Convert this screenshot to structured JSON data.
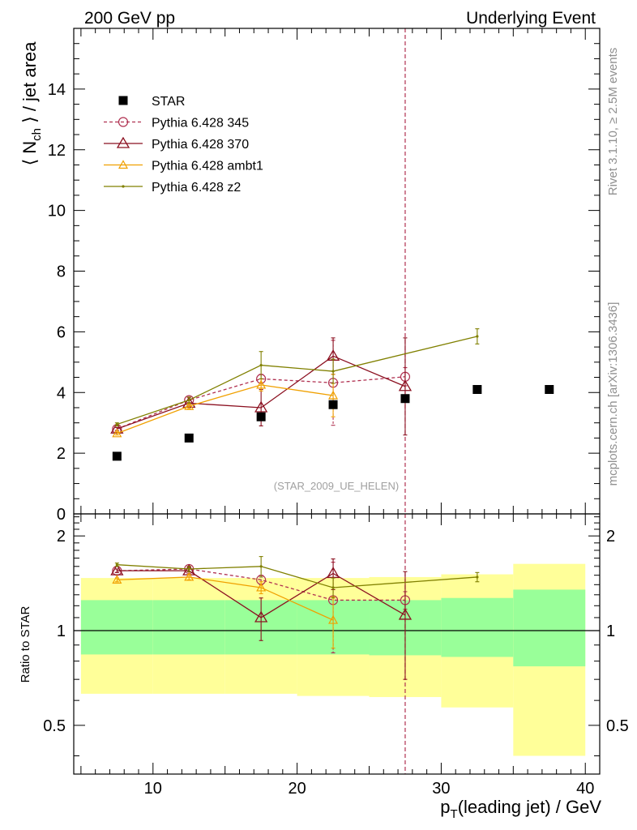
{
  "header": {
    "left": "200 GeV pp",
    "right": "Underlying Event"
  },
  "side_labels": {
    "rivet": "Rivet 3.1.10, ≥ 2.5M events",
    "mcplots": "mcplots.cern.ch [arXiv:1306.3436]"
  },
  "analysis_label": "(STAR_2009_UE_HELEN)",
  "colors": {
    "star": "#000000",
    "p345": "#b03050",
    "p370": "#8b1020",
    "ambt1": "#f0a000",
    "z2": "#808000",
    "band_inner": "#99ff99",
    "band_outer": "#ffff99"
  },
  "chart_data": [
    {
      "type": "scatter",
      "panel": "main",
      "ylabel_parts": {
        "pre": "⟨ N",
        "sub": "ch",
        "post": " ⟩ / jet area"
      },
      "xlim": [
        4.5,
        41
      ],
      "ylim": [
        0,
        16
      ],
      "yticks": [
        0,
        2,
        4,
        6,
        8,
        10,
        12,
        14
      ],
      "vline_x": 27.5,
      "legend_position": "top-left",
      "series": [
        {
          "name": "STAR",
          "key": "star",
          "style": "square",
          "x": [
            7.5,
            12.5,
            17.5,
            22.5,
            27.5,
            32.5,
            37.5
          ],
          "y": [
            1.9,
            2.5,
            3.2,
            3.6,
            3.8,
            4.1,
            4.1
          ],
          "err": [
            0,
            0,
            0,
            0,
            0,
            0,
            0
          ]
        },
        {
          "name": "Pythia 6.428 345",
          "key": "p345",
          "style": "circle",
          "dashed": true,
          "x": [
            7.5,
            12.5,
            17.5,
            22.5,
            27.5
          ],
          "y": [
            2.8,
            3.75,
            4.45,
            4.32,
            4.52
          ],
          "err": [
            0.05,
            0.08,
            0.15,
            1.4,
            0.3
          ]
        },
        {
          "name": "Pythia 6.428 370",
          "key": "p370",
          "style": "triangle",
          "x": [
            7.5,
            12.5,
            17.5,
            22.5,
            27.5
          ],
          "y": [
            2.8,
            3.65,
            3.5,
            5.2,
            4.2
          ],
          "err": [
            0.05,
            0.1,
            0.6,
            0.6,
            1.6
          ]
        },
        {
          "name": "Pythia 6.428 ambt1",
          "key": "ambt1",
          "style": "triangle-small",
          "x": [
            7.5,
            12.5,
            17.5,
            22.5
          ],
          "y": [
            2.65,
            3.55,
            4.25,
            3.9
          ],
          "err": [
            0.05,
            0.08,
            0.2,
            0.7
          ]
        },
        {
          "name": "Pythia 6.428 z2",
          "key": "z2",
          "style": "dot",
          "x": [
            7.5,
            12.5,
            17.5,
            22.5,
            32.5
          ],
          "y": [
            2.95,
            3.75,
            4.9,
            4.7,
            5.85
          ],
          "err": [
            0.05,
            0.1,
            0.45,
            0.4,
            0.25
          ]
        }
      ]
    },
    {
      "type": "scatter",
      "panel": "ratio",
      "ylabel": "Ratio to STAR",
      "xlabel_parts": {
        "pre": "p",
        "sub": "T",
        "post": "(leading jet) / GeV"
      },
      "xlim": [
        4.5,
        41
      ],
      "ylim": [
        0.35,
        2.35
      ],
      "yscale": "log",
      "xticks": [
        10,
        20,
        30,
        40
      ],
      "yticks": [
        0.5,
        1,
        2
      ],
      "reference_line": 1,
      "vline_x": 27.5,
      "bands": [
        {
          "x0": 5,
          "x1": 10,
          "inner": [
            0.84,
            1.25
          ],
          "outer": [
            0.63,
            1.47
          ]
        },
        {
          "x0": 10,
          "x1": 15,
          "inner": [
            0.84,
            1.25
          ],
          "outer": [
            0.63,
            1.47
          ]
        },
        {
          "x0": 15,
          "x1": 20,
          "inner": [
            0.84,
            1.25
          ],
          "outer": [
            0.63,
            1.47
          ]
        },
        {
          "x0": 20,
          "x1": 25,
          "inner": [
            0.84,
            1.25
          ],
          "outer": [
            0.62,
            1.47
          ]
        },
        {
          "x0": 25,
          "x1": 30,
          "inner": [
            0.835,
            1.25
          ],
          "outer": [
            0.615,
            1.48
          ]
        },
        {
          "x0": 30,
          "x1": 35,
          "inner": [
            0.825,
            1.27
          ],
          "outer": [
            0.57,
            1.51
          ]
        },
        {
          "x0": 35,
          "x1": 40,
          "inner": [
            0.77,
            1.35
          ],
          "outer": [
            0.4,
            1.63
          ]
        }
      ],
      "series": [
        {
          "name": "Pythia 6.428 345",
          "key": "p345",
          "style": "circle",
          "dashed": true,
          "x": [
            7.5,
            12.5,
            17.5,
            22.5,
            27.5
          ],
          "y": [
            1.55,
            1.57,
            1.45,
            1.25,
            1.25
          ],
          "err": [
            0.02,
            0.03,
            0.05,
            0.4,
            0.08
          ]
        },
        {
          "name": "Pythia 6.428 370",
          "key": "p370",
          "style": "triangle",
          "x": [
            7.5,
            12.5,
            17.5,
            22.5,
            27.5
          ],
          "y": [
            1.55,
            1.55,
            1.1,
            1.52,
            1.12
          ],
          "err": [
            0.02,
            0.04,
            0.17,
            0.17,
            0.42
          ]
        },
        {
          "name": "Pythia 6.428 ambt1",
          "key": "ambt1",
          "style": "triangle-small",
          "x": [
            7.5,
            12.5,
            17.5,
            22.5
          ],
          "y": [
            1.45,
            1.48,
            1.37,
            1.08
          ],
          "err": [
            0.02,
            0.03,
            0.06,
            0.2
          ]
        },
        {
          "name": "Pythia 6.428 z2",
          "key": "z2",
          "style": "dot",
          "x": [
            7.5,
            12.5,
            17.5,
            22.5,
            32.5
          ],
          "y": [
            1.62,
            1.57,
            1.6,
            1.37,
            1.48
          ],
          "err": [
            0.02,
            0.03,
            0.12,
            0.1,
            0.05
          ]
        }
      ]
    }
  ]
}
